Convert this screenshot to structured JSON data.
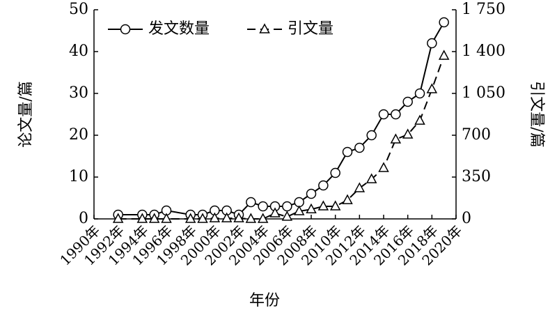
{
  "chart_data": {
    "type": "line",
    "xlabel": "年份",
    "ylabel": "论文量/篇",
    "y2label": "引文量/篇",
    "x": [
      1992,
      1994,
      1995,
      1996,
      1998,
      1999,
      2000,
      2001,
      2002,
      2003,
      2004,
      2005,
      2006,
      2007,
      2008,
      2009,
      2010,
      2011,
      2012,
      2013,
      2014,
      2015,
      2016,
      2017,
      2018,
      2019
    ],
    "series": [
      {
        "name": "发文数量",
        "color": "#000000",
        "marker": "circle",
        "axis": "y",
        "values": [
          1,
          1,
          1,
          2,
          1,
          1,
          2,
          2,
          1,
          4,
          3,
          3,
          3,
          4,
          6,
          8,
          11,
          16,
          17,
          20,
          25,
          25,
          28,
          30,
          42,
          47
        ]
      },
      {
        "name": "引文量",
        "color": "#000000",
        "marker": "triangle",
        "dash": true,
        "axis": "y2",
        "values": [
          0,
          0,
          0,
          0,
          0,
          0,
          5,
          5,
          5,
          0,
          0,
          47,
          18,
          64,
          80,
          105,
          105,
          157,
          257,
          332,
          426,
          665,
          706,
          822,
          1085,
          1365
        ]
      }
    ],
    "xlim": [
      1990,
      2020
    ],
    "xticks": [
      {
        "value": 1990,
        "label": "1990年"
      },
      {
        "value": 1992,
        "label": "1992年"
      },
      {
        "value": 1994,
        "label": "1994年"
      },
      {
        "value": 1996,
        "label": "1996年"
      },
      {
        "value": 1998,
        "label": "1998年"
      },
      {
        "value": 2000,
        "label": "2000年"
      },
      {
        "value": 2002,
        "label": "2002年"
      },
      {
        "value": 2004,
        "label": "2004年"
      },
      {
        "value": 2006,
        "label": "2006年"
      },
      {
        "value": 2008,
        "label": "2008年"
      },
      {
        "value": 2010,
        "label": "2010年"
      },
      {
        "value": 2012,
        "label": "2012年"
      },
      {
        "value": 2014,
        "label": "2014年"
      },
      {
        "value": 2016,
        "label": "2016年"
      },
      {
        "value": 2018,
        "label": "2018年"
      },
      {
        "value": 2020,
        "label": "2020年"
      }
    ],
    "ylim": [
      0,
      50
    ],
    "yticks": [
      0,
      10,
      20,
      30,
      40,
      50
    ],
    "y2lim": [
      0,
      1750
    ],
    "y2ticks": [
      0,
      350,
      700,
      {
        "value": 1050,
        "label": "1 050"
      },
      {
        "value": 1400,
        "label": "1 400"
      },
      {
        "value": 1750,
        "label": "1 750"
      }
    ],
    "legend": "upper left"
  }
}
